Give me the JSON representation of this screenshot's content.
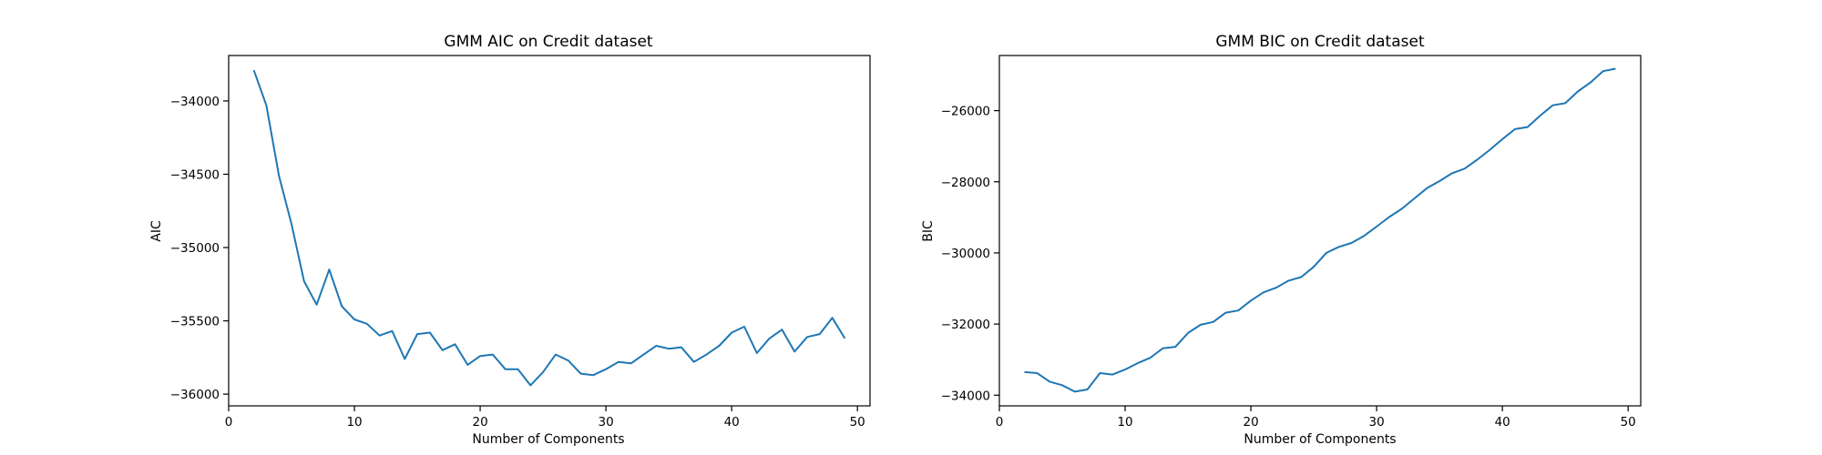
{
  "chart_data": [
    {
      "type": "line",
      "title": "GMM AIC on Credit dataset",
      "xlabel": "Number of Components",
      "ylabel": "AIC",
      "xlim": [
        0,
        51
      ],
      "ylim": [
        -36080,
        -33690
      ],
      "xticks": [
        0,
        10,
        20,
        30,
        40,
        50
      ],
      "yticks": [
        -36000,
        -35500,
        -35000,
        -34500,
        -34000
      ],
      "xtick_labels": [
        "0",
        "10",
        "20",
        "30",
        "40",
        "50"
      ],
      "ytick_labels": [
        "−36000",
        "−35500",
        "−35000",
        "−34500",
        "−34000"
      ],
      "color": "#1f77b4",
      "grid": false,
      "x": [
        2,
        3,
        4,
        5,
        6,
        7,
        8,
        9,
        10,
        11,
        12,
        13,
        14,
        15,
        16,
        17,
        18,
        19,
        20,
        21,
        22,
        23,
        24,
        25,
        26,
        27,
        28,
        29,
        30,
        31,
        32,
        33,
        34,
        35,
        36,
        37,
        38,
        39,
        40,
        41,
        42,
        43,
        44,
        45,
        46,
        47,
        48,
        49
      ],
      "values": [
        -33790,
        -34030,
        -34510,
        -34840,
        -35230,
        -35390,
        -35150,
        -35400,
        -35490,
        -35520,
        -35600,
        -35570,
        -35760,
        -35590,
        -35580,
        -35700,
        -35660,
        -35800,
        -35740,
        -35730,
        -35830,
        -35830,
        -35940,
        -35850,
        -35730,
        -35770,
        -35860,
        -35870,
        -35830,
        -35780,
        -35790,
        -35730,
        -35670,
        -35690,
        -35680,
        -35780,
        -35730,
        -35670,
        -35580,
        -35540,
        -35720,
        -35620,
        -35560,
        -35710,
        -35610,
        -35590,
        -35480,
        -35620
      ]
    },
    {
      "type": "line",
      "title": "GMM BIC on Credit dataset",
      "xlabel": "Number of Components",
      "ylabel": "BIC",
      "xlim": [
        0,
        51
      ],
      "ylim": [
        -34300,
        -24450
      ],
      "xticks": [
        0,
        10,
        20,
        30,
        40,
        50
      ],
      "yticks": [
        -34000,
        -32000,
        -30000,
        -28000,
        -26000
      ],
      "xtick_labels": [
        "0",
        "10",
        "20",
        "30",
        "40",
        "50"
      ],
      "ytick_labels": [
        "−34000",
        "−32000",
        "−30000",
        "−28000",
        "−26000"
      ],
      "color": "#1f77b4",
      "grid": false,
      "x": [
        2,
        3,
        4,
        5,
        6,
        7,
        8,
        9,
        10,
        11,
        12,
        13,
        14,
        15,
        16,
        17,
        18,
        19,
        20,
        21,
        22,
        23,
        24,
        25,
        26,
        27,
        28,
        29,
        30,
        31,
        32,
        33,
        34,
        35,
        36,
        37,
        38,
        39,
        40,
        41,
        42,
        43,
        44,
        45,
        46,
        47,
        48,
        49
      ],
      "values": [
        -33350,
        -33380,
        -33620,
        -33720,
        -33900,
        -33840,
        -33380,
        -33420,
        -33280,
        -33100,
        -32950,
        -32680,
        -32640,
        -32250,
        -32020,
        -31940,
        -31680,
        -31620,
        -31340,
        -31110,
        -30980,
        -30780,
        -30680,
        -30390,
        -30000,
        -29830,
        -29720,
        -29520,
        -29260,
        -28990,
        -28760,
        -28470,
        -28180,
        -27980,
        -27760,
        -27630,
        -27380,
        -27100,
        -26800,
        -26520,
        -26460,
        -26140,
        -25850,
        -25790,
        -25460,
        -25210,
        -24890,
        -24820
      ]
    }
  ]
}
